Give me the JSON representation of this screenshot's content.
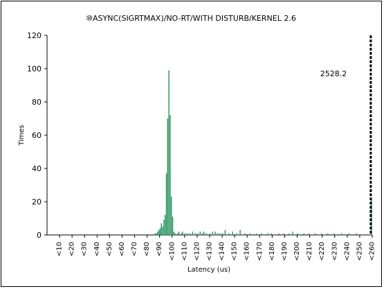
{
  "chart_data": {
    "type": "bar",
    "title": "⑩ASYNC(SIGRTMAX)/NO-RT/WITH DISTURB/KERNEL 2.6",
    "xlabel": "Latency (us)",
    "ylabel": "Times",
    "ylim": [
      0,
      120
    ],
    "yticks": [
      0,
      20,
      40,
      60,
      80,
      100,
      120
    ],
    "x_tick_labels": [
      "<10",
      "<20",
      "<30",
      "<40",
      "<50",
      "<60",
      "<70",
      "<80",
      "<90",
      "<100",
      "<110",
      "<120",
      "<130",
      "<140",
      "<150",
      "<160",
      "<170",
      "<180",
      "<190",
      "<200",
      "<210",
      "<220",
      "<230",
      "<240",
      "<250",
      "<260"
    ],
    "xlim_us": [
      0,
      260
    ],
    "bin_width_us": 1,
    "bar_color": "#339966",
    "bars": [
      {
        "x": 49,
        "y": 1
      },
      {
        "x": 86,
        "y": 1
      },
      {
        "x": 87,
        "y": 1
      },
      {
        "x": 88,
        "y": 2
      },
      {
        "x": 89,
        "y": 3
      },
      {
        "x": 90,
        "y": 4
      },
      {
        "x": 91,
        "y": 7
      },
      {
        "x": 92,
        "y": 5
      },
      {
        "x": 93,
        "y": 9
      },
      {
        "x": 94,
        "y": 12
      },
      {
        "x": 95,
        "y": 37
      },
      {
        "x": 96,
        "y": 70
      },
      {
        "x": 97,
        "y": 99
      },
      {
        "x": 98,
        "y": 72
      },
      {
        "x": 99,
        "y": 23
      },
      {
        "x": 100,
        "y": 11
      },
      {
        "x": 101,
        "y": 2
      },
      {
        "x": 102,
        "y": 1
      },
      {
        "x": 104,
        "y": 1
      },
      {
        "x": 105,
        "y": 2
      },
      {
        "x": 107,
        "y": 1
      },
      {
        "x": 108,
        "y": 2
      },
      {
        "x": 110,
        "y": 1
      },
      {
        "x": 112,
        "y": 1
      },
      {
        "x": 114,
        "y": 1
      },
      {
        "x": 116,
        "y": 2
      },
      {
        "x": 118,
        "y": 1
      },
      {
        "x": 120,
        "y": 1
      },
      {
        "x": 122,
        "y": 2
      },
      {
        "x": 124,
        "y": 1
      },
      {
        "x": 125,
        "y": 2
      },
      {
        "x": 127,
        "y": 1
      },
      {
        "x": 130,
        "y": 1
      },
      {
        "x": 132,
        "y": 2
      },
      {
        "x": 134,
        "y": 2
      },
      {
        "x": 136,
        "y": 1
      },
      {
        "x": 138,
        "y": 1
      },
      {
        "x": 140,
        "y": 1
      },
      {
        "x": 142,
        "y": 3
      },
      {
        "x": 145,
        "y": 1
      },
      {
        "x": 148,
        "y": 2
      },
      {
        "x": 151,
        "y": 1
      },
      {
        "x": 154,
        "y": 3
      },
      {
        "x": 158,
        "y": 1
      },
      {
        "x": 162,
        "y": 1
      },
      {
        "x": 167,
        "y": 1
      },
      {
        "x": 171,
        "y": 1
      },
      {
        "x": 176,
        "y": 1
      },
      {
        "x": 179,
        "y": 1
      },
      {
        "x": 185,
        "y": 1
      },
      {
        "x": 189,
        "y": 1
      },
      {
        "x": 193,
        "y": 1
      },
      {
        "x": 196,
        "y": 2
      },
      {
        "x": 200,
        "y": 1
      },
      {
        "x": 205,
        "y": 1
      },
      {
        "x": 209,
        "y": 1
      },
      {
        "x": 214,
        "y": 1
      },
      {
        "x": 219,
        "y": 1
      },
      {
        "x": 224,
        "y": 1
      },
      {
        "x": 229,
        "y": 1
      },
      {
        "x": 235,
        "y": 1
      },
      {
        "x": 241,
        "y": 1
      },
      {
        "x": 247,
        "y": 1
      },
      {
        "x": 259,
        "y": 22
      }
    ],
    "reference_line": {
      "x": 258,
      "label": "2528.2",
      "style": "dashed",
      "color": "#000000"
    },
    "grid": false,
    "legend": "none"
  }
}
